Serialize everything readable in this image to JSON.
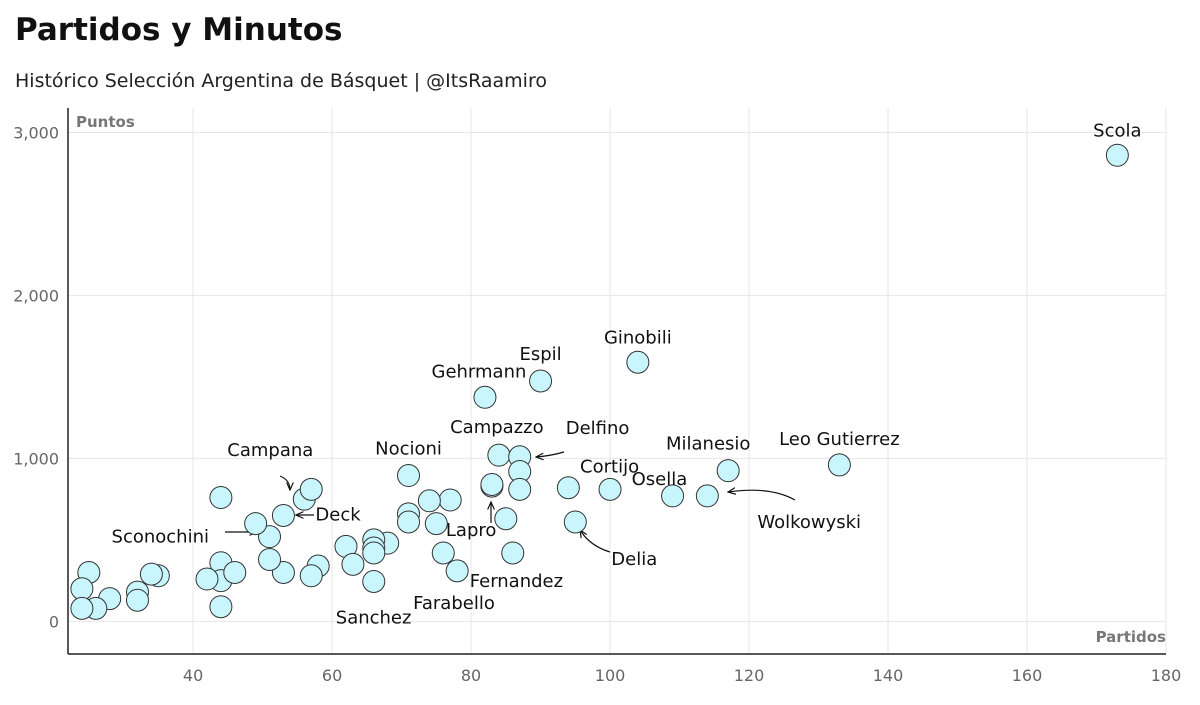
{
  "header": {
    "title": "Partidos y Minutos",
    "subtitle": "Histórico Selección Argentina de Básquet | @ItsRaamiro"
  },
  "chart_data": {
    "type": "scatter",
    "title": "Partidos y Minutos",
    "subtitle": "Histórico Selección Argentina de Básquet | @ItsRaamiro",
    "xlabel": "Partidos",
    "ylabel": "Puntos",
    "xlim": [
      22,
      180
    ],
    "ylim": [
      -200,
      3150
    ],
    "xticks": [
      40,
      60,
      80,
      100,
      120,
      140,
      160,
      180
    ],
    "yticks": [
      0,
      1000,
      2000,
      3000
    ],
    "ytick_labels": [
      "0",
      "1,000",
      "2,000",
      "3,000"
    ],
    "grid": true,
    "point_color": "#c8f6fc",
    "points": [
      {
        "x": 173,
        "y": 2860,
        "label": "Scola"
      },
      {
        "x": 104,
        "y": 1590,
        "label": "Ginobili"
      },
      {
        "x": 90,
        "y": 1475,
        "label": "Espil"
      },
      {
        "x": 82,
        "y": 1375,
        "label": "Gehrmann"
      },
      {
        "x": 84,
        "y": 1020,
        "label": "Campazzo"
      },
      {
        "x": 87,
        "y": 1010,
        "label": "Delfino"
      },
      {
        "x": 133,
        "y": 960,
        "label": "Leo Gutierrez"
      },
      {
        "x": 117,
        "y": 925,
        "label": "Milanesio"
      },
      {
        "x": 114,
        "y": 770,
        "label": "Wolkowyski"
      },
      {
        "x": 109,
        "y": 770,
        "label": "Osella"
      },
      {
        "x": 100,
        "y": 810,
        "label": "Cortijo"
      },
      {
        "x": 95,
        "y": 610,
        "label": "Delia"
      },
      {
        "x": 71,
        "y": 895,
        "label": "Nocioni"
      },
      {
        "x": 83,
        "y": 830,
        "label": "Lapro"
      },
      {
        "x": 86,
        "y": 420,
        "label": "Fernandez"
      },
      {
        "x": 78,
        "y": 310,
        "label": "Farabello"
      },
      {
        "x": 66,
        "y": 245,
        "label": "Sanchez"
      },
      {
        "x": 56,
        "y": 750,
        "label": "Campana"
      },
      {
        "x": 53,
        "y": 650,
        "label": "Deck"
      },
      {
        "x": 51,
        "y": 520,
        "label": "Sconochini"
      },
      {
        "x": 87,
        "y": 920
      },
      {
        "x": 87,
        "y": 810
      },
      {
        "x": 94,
        "y": 820
      },
      {
        "x": 85,
        "y": 630
      },
      {
        "x": 83,
        "y": 840
      },
      {
        "x": 77,
        "y": 745
      },
      {
        "x": 74,
        "y": 740
      },
      {
        "x": 75,
        "y": 600
      },
      {
        "x": 71,
        "y": 660
      },
      {
        "x": 71,
        "y": 610
      },
      {
        "x": 76,
        "y": 420
      },
      {
        "x": 68,
        "y": 480
      },
      {
        "x": 66,
        "y": 500
      },
      {
        "x": 66,
        "y": 450
      },
      {
        "x": 66,
        "y": 420
      },
      {
        "x": 62,
        "y": 460
      },
      {
        "x": 63,
        "y": 350
      },
      {
        "x": 58,
        "y": 340
      },
      {
        "x": 57,
        "y": 280
      },
      {
        "x": 57,
        "y": 810
      },
      {
        "x": 53,
        "y": 300
      },
      {
        "x": 51,
        "y": 380
      },
      {
        "x": 49,
        "y": 600
      },
      {
        "x": 44,
        "y": 760
      },
      {
        "x": 44,
        "y": 360
      },
      {
        "x": 44,
        "y": 250
      },
      {
        "x": 44,
        "y": 90
      },
      {
        "x": 46,
        "y": 300
      },
      {
        "x": 42,
        "y": 260
      },
      {
        "x": 35,
        "y": 280
      },
      {
        "x": 34,
        "y": 290
      },
      {
        "x": 32,
        "y": 180
      },
      {
        "x": 32,
        "y": 130
      },
      {
        "x": 28,
        "y": 140
      },
      {
        "x": 26,
        "y": 80
      },
      {
        "x": 25,
        "y": 300
      },
      {
        "x": 24,
        "y": 200
      },
      {
        "x": 24,
        "y": 80
      }
    ]
  }
}
